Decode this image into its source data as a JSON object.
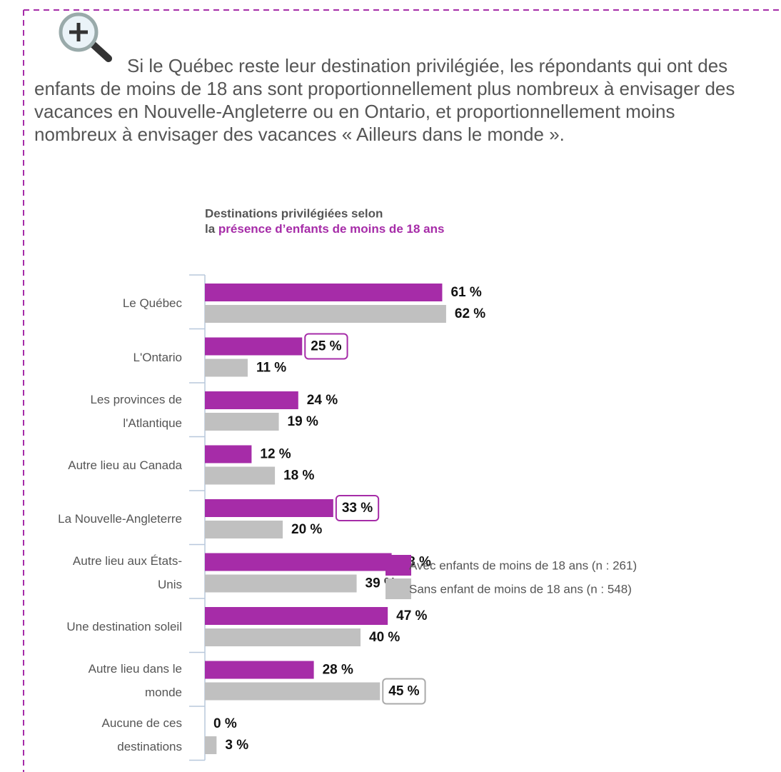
{
  "intro": "Si le Québec reste leur destination privilégiée, les répondants qui ont des enfants de moins de 18 ans sont proportionnellement plus nombreux à envisager des vacances en Nouvelle-Angleterre ou en Ontario, et proportionnellement moins nombreux à envisager des vacances « Ailleurs dans le monde ».",
  "chart_data": {
    "type": "hbar",
    "title": "Destinations privilégiées selon",
    "title_prefix": "la",
    "title_highlight": "présence d’enfants de moins de 18 ans",
    "categories": [
      "Le Québec",
      "L'Ontario",
      "Les provinces de\nl'Atlantique",
      "Autre lieu au Canada",
      "La Nouvelle-Angleterre",
      "Autre lieu aux États-\nUnis",
      "Une destination soleil",
      "Autre lieu dans le\nmonde",
      "Aucune de ces\ndestinations"
    ],
    "series": [
      {
        "name": "Avec enfants de moins de 18 ans (n : 261)",
        "color": "#a62ca8",
        "values": [
          61,
          25,
          24,
          12,
          33,
          48,
          47,
          28,
          0
        ],
        "value_labels": [
          "61 %",
          "25 %",
          "24 %",
          "12 %",
          "33 %",
          "48 %",
          "47 %",
          "28 %",
          "0 %"
        ]
      },
      {
        "name": "Sans enfant de moins de 18 ans (n : 548)",
        "color": "#c0c0c0",
        "values": [
          62,
          11,
          19,
          18,
          20,
          39,
          40,
          45,
          3
        ],
        "value_labels": [
          "62 %",
          "11 %",
          "19 %",
          "18 %",
          "20 %",
          "39 %",
          "40 %",
          "45 %",
          "3 %"
        ]
      }
    ],
    "highlighted": [
      {
        "series": 0,
        "index": 1
      },
      {
        "series": 0,
        "index": 4
      },
      {
        "series": 1,
        "index": 7
      }
    ],
    "xlim": [
      0,
      100
    ],
    "legend": "bottom-right"
  }
}
